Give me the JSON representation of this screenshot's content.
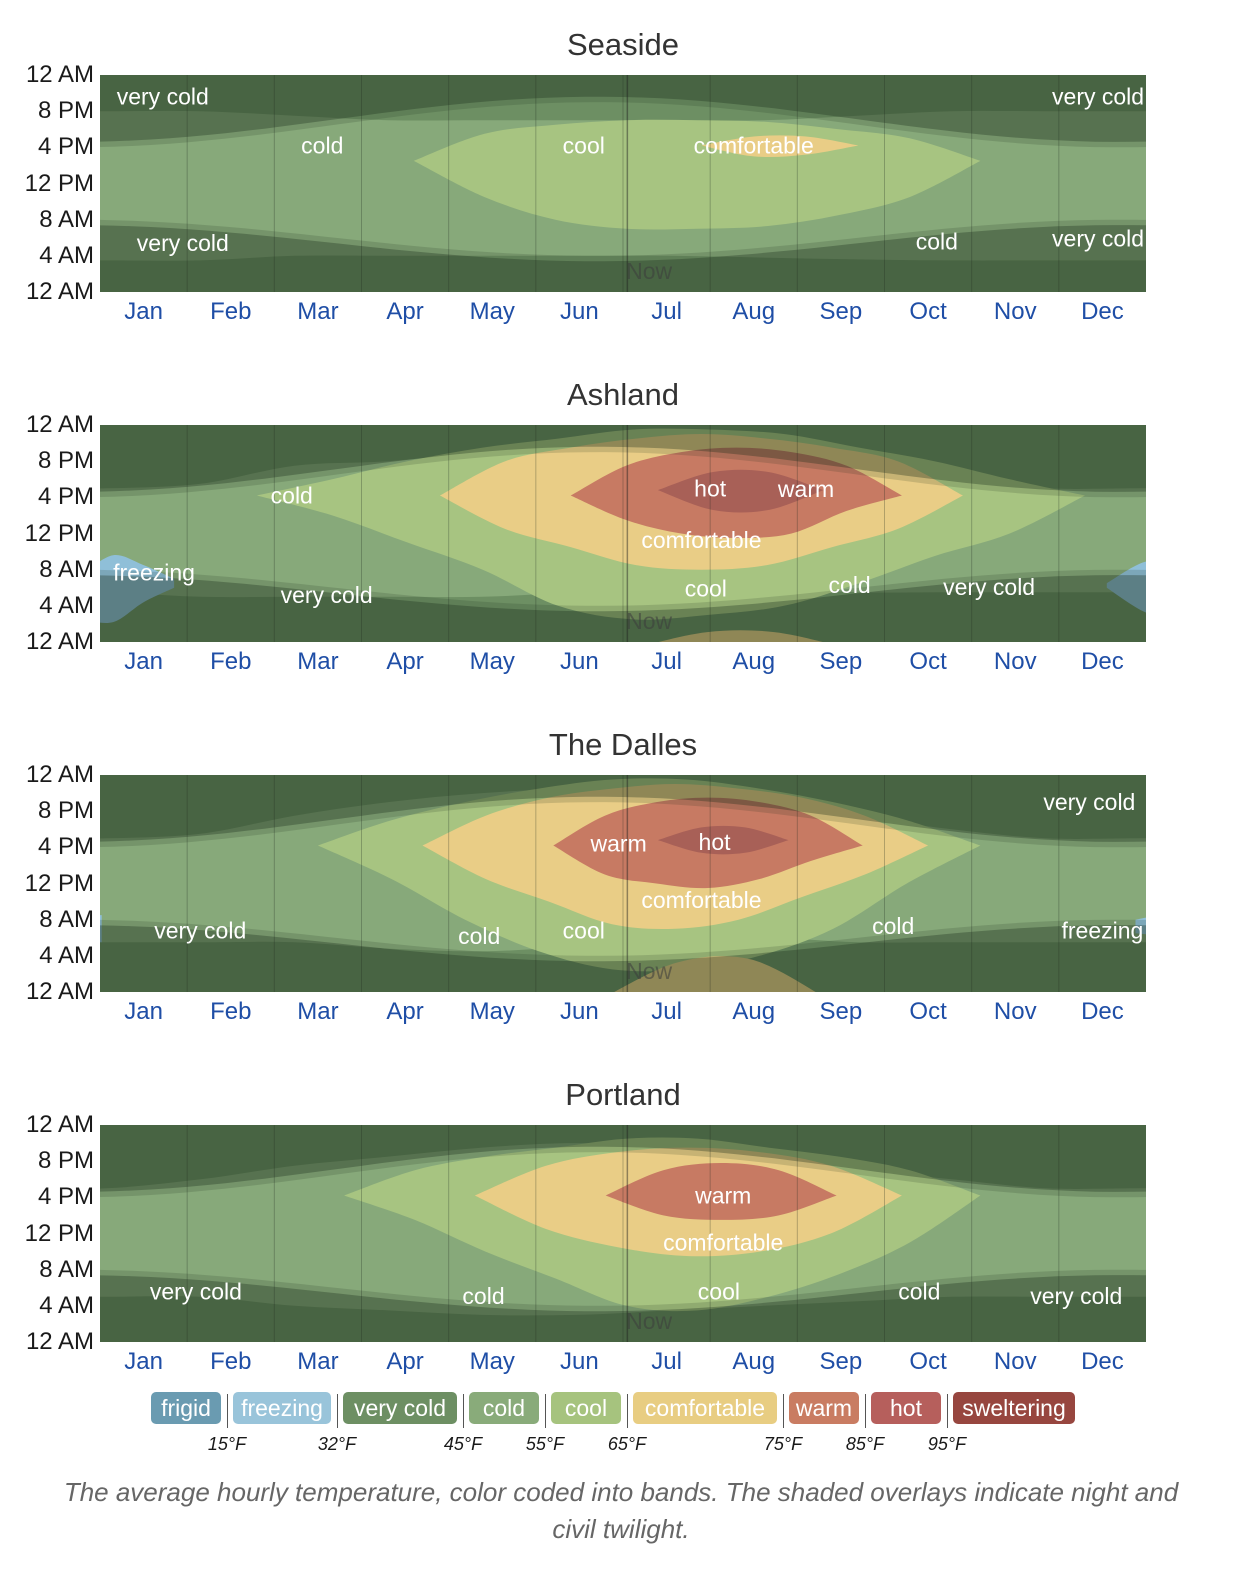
{
  "charts": [
    {
      "title": "Seaside",
      "regions": [
        {
          "band": "cold",
          "t0": -1,
          "t1": 13,
          "low": [
            3.5,
            3.5,
            3.5,
            4,
            4,
            4,
            4,
            4,
            3.8,
            3.6,
            3.5,
            3.5,
            3.5,
            3.5
          ],
          "high": [
            20,
            20,
            20,
            19.5,
            19,
            19,
            19,
            19,
            19,
            19.5,
            20,
            20,
            20,
            20
          ]
        },
        {
          "band": "cool",
          "t0": 3.6,
          "t1": 10.1,
          "low": [
            14.5,
            10.5,
            8,
            7,
            7,
            7.3,
            8.5,
            10.5,
            14.5
          ],
          "high": [
            14.5,
            17.5,
            18.5,
            19,
            19,
            18.8,
            18,
            17,
            14.5
          ]
        },
        {
          "band": "comfortable",
          "t0": 6.9,
          "t1": 8.7,
          "low": [
            16.2,
            15,
            15.2,
            16.2
          ],
          "high": [
            16.2,
            17.2,
            17.2,
            16.2
          ]
        }
      ],
      "labels": [
        {
          "text": "very cold",
          "x": 0.72,
          "y": 21.6
        },
        {
          "text": "very cold",
          "x": 11.45,
          "y": 21.6
        },
        {
          "text": "cold",
          "x": 2.55,
          "y": 16.2
        },
        {
          "text": "cool",
          "x": 5.55,
          "y": 16.2
        },
        {
          "text": "comfortable",
          "x": 7.5,
          "y": 16.2
        },
        {
          "text": "very cold",
          "x": 0.95,
          "y": 5.4
        },
        {
          "text": "cold",
          "x": 9.6,
          "y": 5.6
        },
        {
          "text": "very cold",
          "x": 11.45,
          "y": 5.9
        }
      ],
      "now_label": "Now"
    },
    {
      "title": "Ashland",
      "regions": [
        {
          "band": "cold",
          "t0": -1,
          "t1": 13,
          "low": [
            5.5,
            5.5,
            5,
            5,
            5,
            5,
            5.5,
            6,
            6,
            5.5,
            5.5,
            5.5,
            5.5,
            5.5
          ],
          "high": [
            17,
            17,
            17.5,
            19.5,
            20,
            21,
            22,
            22,
            21,
            19.5,
            18,
            17,
            17,
            17
          ]
        },
        {
          "band": "cool",
          "t0": 1.8,
          "t1": 11.3,
          "low": [
            16.2,
            14,
            11,
            8,
            4,
            2.5,
            3,
            4,
            6.5,
            9.5,
            12,
            16.2
          ],
          "high": [
            16.2,
            18,
            20,
            21.5,
            22.5,
            23.5,
            23.5,
            23,
            21.5,
            20,
            18,
            16.2
          ]
        },
        {
          "band": "comfortable",
          "t0": 3.9,
          "t1": 9.9,
          "low": [
            16.2,
            12.5,
            10.5,
            8.5,
            8,
            8.5,
            10.5,
            12.5,
            16.2
          ],
          "high": [
            16.2,
            20,
            21.5,
            22.5,
            23,
            22.5,
            21.5,
            20,
            16.2
          ]
        },
        {
          "band": "warm",
          "t0": 5.4,
          "t1": 9.2,
          "low": [
            16.2,
            13.5,
            12,
            11.5,
            12,
            14.5,
            16.2
          ],
          "high": [
            16.2,
            19.5,
            21,
            21.5,
            21,
            19.5,
            16.2
          ]
        },
        {
          "band": "hot",
          "t0": 6.4,
          "t1": 8.3,
          "low": [
            16.8,
            14.6,
            14.6,
            16.8
          ],
          "high": [
            16.8,
            18.8,
            18.8,
            16.8
          ]
        },
        {
          "band": "comfortable",
          "t0": 6.2,
          "t1": 8.5,
          "low": [
            -0.5,
            -0.5,
            -0.5,
            -0.5
          ],
          "high": [
            -0.5,
            1.1,
            1.1,
            -0.5
          ]
        },
        {
          "band": "freezing",
          "t0": -0.2,
          "t1": 0.85,
          "low": [
            2.5,
            2.2,
            4.4,
            6
          ],
          "high": [
            7.5,
            9.6,
            8.5,
            7
          ]
        },
        {
          "band": "freezing",
          "t0": 11.55,
          "t1": 12.8,
          "low": [
            6,
            3.4,
            2.2,
            2.2
          ],
          "high": [
            6.5,
            8.8,
            9.3,
            9.3
          ]
        }
      ],
      "labels": [
        {
          "text": "cold",
          "x": 2.2,
          "y": 16.2
        },
        {
          "text": "hot",
          "x": 7.0,
          "y": 17.0
        },
        {
          "text": "warm",
          "x": 8.1,
          "y": 16.9
        },
        {
          "text": "comfortable",
          "x": 6.9,
          "y": 11.3
        },
        {
          "text": "freezing",
          "x": 0.62,
          "y": 7.7
        },
        {
          "text": "very cold",
          "x": 2.6,
          "y": 5.2
        },
        {
          "text": "cool",
          "x": 6.95,
          "y": 5.9
        },
        {
          "text": "cold",
          "x": 8.6,
          "y": 6.3
        },
        {
          "text": "very cold",
          "x": 10.2,
          "y": 6.1
        }
      ],
      "now_label": "Now"
    },
    {
      "title": "The Dalles",
      "regions": [
        {
          "band": "cold",
          "t0": -1,
          "t1": 13,
          "low": [
            5.5,
            5.5,
            5.5,
            5.5,
            4.8,
            4.5,
            5,
            5.5,
            6,
            5.5,
            5.5,
            5.5,
            5.5,
            5.5
          ],
          "high": [
            17,
            17,
            17.5,
            19.5,
            21,
            22,
            22.5,
            22.5,
            21.5,
            19.5,
            18,
            17,
            17,
            17
          ]
        },
        {
          "band": "cool",
          "t0": 2.5,
          "t1": 10.1,
          "low": [
            16.2,
            12.5,
            8,
            4.5,
            2.5,
            2.5,
            4,
            7,
            12,
            16.2
          ],
          "high": [
            16.2,
            19,
            21,
            22.5,
            23.5,
            23.5,
            22.5,
            21,
            19,
            16.2
          ]
        },
        {
          "band": "comfortable",
          "t0": 3.7,
          "t1": 9.5,
          "low": [
            16.2,
            12.5,
            10,
            7.5,
            7,
            8,
            10.5,
            13,
            16.2
          ],
          "high": [
            16.2,
            19.5,
            21.5,
            22.5,
            23,
            22.5,
            21.5,
            19.5,
            16.2
          ]
        },
        {
          "band": "comfortable",
          "t0": 5.8,
          "t1": 8.3,
          "low": [
            -0.5,
            -0.5,
            -0.5,
            -0.5
          ],
          "high": [
            -0.5,
            3.3,
            3.6,
            -0.5
          ]
        },
        {
          "band": "warm",
          "t0": 5.2,
          "t1": 8.75,
          "low": [
            16.2,
            13,
            12,
            11.5,
            12.5,
            14.5,
            16.2
          ],
          "high": [
            16.2,
            19.5,
            21,
            21.5,
            21,
            19.5,
            16.2
          ]
        },
        {
          "band": "hot",
          "t0": 6.4,
          "t1": 7.9,
          "low": [
            16.8,
            15.4,
            15.4,
            16.8
          ],
          "high": [
            16.8,
            18.2,
            18.2,
            16.8
          ]
        },
        {
          "band": "freezing",
          "t0": -0.05,
          "t1": 0.02,
          "low": [
            5.5,
            5.5
          ],
          "high": [
            8.5,
            8.5
          ]
        },
        {
          "band": "freezing",
          "t0": 11.88,
          "t1": 12.5,
          "low": [
            6.5,
            6.2,
            5.8
          ],
          "high": [
            8,
            8.6,
            9.2
          ]
        }
      ],
      "labels": [
        {
          "text": "very cold",
          "x": 11.35,
          "y": 21.0
        },
        {
          "text": "warm",
          "x": 5.95,
          "y": 16.4
        },
        {
          "text": "hot",
          "x": 7.05,
          "y": 16.6
        },
        {
          "text": "comfortable",
          "x": 6.9,
          "y": 10.2
        },
        {
          "text": "very cold",
          "x": 1.15,
          "y": 6.8
        },
        {
          "text": "cold",
          "x": 4.35,
          "y": 6.2
        },
        {
          "text": "cool",
          "x": 5.55,
          "y": 6.8
        },
        {
          "text": "cold",
          "x": 9.1,
          "y": 7.3
        },
        {
          "text": "freezing",
          "x": 11.5,
          "y": 6.8
        }
      ],
      "now_label": "Now"
    },
    {
      "title": "Portland",
      "regions": [
        {
          "band": "cold",
          "t0": -1,
          "t1": 13,
          "low": [
            5,
            5,
            5,
            4,
            3.5,
            3,
            3,
            3.5,
            4,
            4.5,
            5,
            5,
            5,
            5
          ],
          "high": [
            17,
            17,
            18,
            19.5,
            20.5,
            21.5,
            22,
            21.5,
            20.5,
            19,
            18,
            17,
            17,
            17
          ]
        },
        {
          "band": "cool",
          "t0": 2.8,
          "t1": 10.1,
          "low": [
            16.2,
            13.5,
            10,
            7,
            4,
            3.5,
            5,
            7.5,
            11,
            16.2
          ],
          "high": [
            16.2,
            19,
            20.5,
            21.5,
            22.5,
            22.5,
            21.5,
            20.5,
            19,
            16.2
          ]
        },
        {
          "band": "comfortable",
          "t0": 4.3,
          "t1": 9.2,
          "low": [
            16.2,
            12.5,
            10.5,
            9.5,
            10,
            12,
            16.2
          ],
          "high": [
            16.2,
            19.5,
            21,
            21.5,
            21,
            19.5,
            16.2
          ]
        },
        {
          "band": "warm",
          "t0": 5.8,
          "t1": 8.45,
          "low": [
            16.2,
            14,
            13.5,
            14,
            16.2
          ],
          "high": [
            16.2,
            19,
            19.8,
            19,
            16.2
          ]
        }
      ],
      "labels": [
        {
          "text": "warm",
          "x": 7.15,
          "y": 16.2
        },
        {
          "text": "comfortable",
          "x": 7.15,
          "y": 11.0
        },
        {
          "text": "very cold",
          "x": 1.1,
          "y": 5.6
        },
        {
          "text": "cold",
          "x": 4.4,
          "y": 5.1
        },
        {
          "text": "cool",
          "x": 7.1,
          "y": 5.6
        },
        {
          "text": "cold",
          "x": 9.4,
          "y": 5.6
        },
        {
          "text": "very cold",
          "x": 11.2,
          "y": 5.1
        }
      ],
      "now_label": "Now"
    }
  ],
  "chart_data": {
    "type": "heatmap",
    "description_of_axes": "x = month of year, y = hour of day",
    "x_ticks": [
      "Jan",
      "Feb",
      "Mar",
      "Apr",
      "May",
      "Jun",
      "Jul",
      "Aug",
      "Sep",
      "Oct",
      "Nov",
      "Dec"
    ],
    "y_ticks": [
      "12 AM",
      "8 PM",
      "4 PM",
      "12 PM",
      "8 AM",
      "4 AM",
      "12 AM"
    ],
    "y_range_hours": [
      0,
      24
    ],
    "now_position_month": 6.05,
    "charts": [
      "Seaside",
      "Ashland",
      "The Dalles",
      "Portland"
    ]
  },
  "legend": {
    "bands": [
      {
        "name": "frigid",
        "color": "#6a9bb1"
      },
      {
        "name": "freezing",
        "color": "#99c4da"
      },
      {
        "name": "very cold",
        "color": "#6d8f63"
      },
      {
        "name": "cold",
        "color": "#89ab7a"
      },
      {
        "name": "cool",
        "color": "#a6c37e"
      },
      {
        "name": "comfortable",
        "color": "#e8cd82"
      },
      {
        "name": "warm",
        "color": "#c97c62"
      },
      {
        "name": "hot",
        "color": "#b65f5c"
      },
      {
        "name": "sweltering",
        "color": "#97463f"
      }
    ],
    "thresholds": [
      "15°F",
      "32°F",
      "45°F",
      "55°F",
      "65°F",
      "75°F",
      "85°F",
      "95°F"
    ]
  },
  "colors": {
    "cold": "#87a97a",
    "cool": "#a7c481",
    "comfortable": "#e9cd86",
    "warm": "#c77a63",
    "hot": "#a86057",
    "freezing": "#8fbfd8",
    "very_cold": "#6d8f63",
    "night_overlay": "rgba(25,45,25,0.32)",
    "twilight_overlay": "rgba(25,45,25,0.16)",
    "x_label": "#1f4ea6",
    "grid": "rgba(30,40,30,0.28)"
  },
  "caption": "The average hourly temperature, color coded into bands. The shaded overlays indicate night and civil twilight."
}
